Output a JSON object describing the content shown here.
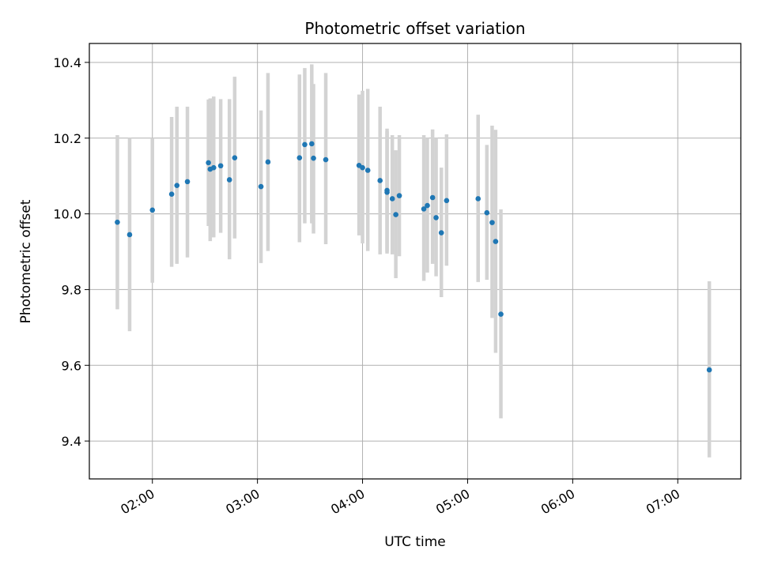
{
  "chart_data": {
    "type": "scatter",
    "title": "Photometric offset variation",
    "xlabel": "UTC time",
    "ylabel": "Photometric offset",
    "xlim": [
      "01:24",
      "07:36"
    ],
    "ylim": [
      9.3,
      10.45
    ],
    "x_ticks": [
      "02:00",
      "03:00",
      "04:00",
      "05:00",
      "06:00",
      "07:00"
    ],
    "y_ticks": [
      9.4,
      9.6,
      9.8,
      10.0,
      10.2,
      10.4
    ],
    "grid": true,
    "colors": {
      "point": "#1f77b4",
      "errorbar": "#d3d3d3",
      "grid": "#b0b0b0"
    },
    "points": [
      {
        "t": "01:40",
        "y": 9.978,
        "lo": 9.748,
        "hi": 10.208
      },
      {
        "t": "01:47",
        "y": 9.945,
        "lo": 9.69,
        "hi": 10.2
      },
      {
        "t": "02:00",
        "y": 10.01,
        "lo": 9.818,
        "hi": 10.2
      },
      {
        "t": "02:11",
        "y": 10.052,
        "lo": 9.86,
        "hi": 10.256
      },
      {
        "t": "02:14",
        "y": 10.075,
        "lo": 9.868,
        "hi": 10.283
      },
      {
        "t": "02:20",
        "y": 10.085,
        "lo": 9.885,
        "hi": 10.283
      },
      {
        "t": "02:32",
        "y": 10.135,
        "lo": 9.968,
        "hi": 10.302
      },
      {
        "t": "02:33",
        "y": 10.118,
        "lo": 9.928,
        "hi": 10.305
      },
      {
        "t": "02:35",
        "y": 10.122,
        "lo": 9.938,
        "hi": 10.31
      },
      {
        "t": "02:39",
        "y": 10.127,
        "lo": 9.95,
        "hi": 10.303
      },
      {
        "t": "02:44",
        "y": 10.09,
        "lo": 9.88,
        "hi": 10.303
      },
      {
        "t": "02:47",
        "y": 10.148,
        "lo": 9.935,
        "hi": 10.362
      },
      {
        "t": "03:02",
        "y": 10.072,
        "lo": 9.87,
        "hi": 10.273
      },
      {
        "t": "03:06",
        "y": 10.137,
        "lo": 9.902,
        "hi": 10.372
      },
      {
        "t": "03:24",
        "y": 10.148,
        "lo": 9.925,
        "hi": 10.368
      },
      {
        "t": "03:27",
        "y": 10.183,
        "lo": 9.975,
        "hi": 10.385
      },
      {
        "t": "03:31",
        "y": 10.185,
        "lo": 9.975,
        "hi": 10.395
      },
      {
        "t": "03:32",
        "y": 10.147,
        "lo": 9.948,
        "hi": 10.343
      },
      {
        "t": "03:39",
        "y": 10.143,
        "lo": 9.92,
        "hi": 10.372
      },
      {
        "t": "03:58",
        "y": 10.128,
        "lo": 9.943,
        "hi": 10.315
      },
      {
        "t": "04:00",
        "y": 10.122,
        "lo": 9.922,
        "hi": 10.325
      },
      {
        "t": "04:03",
        "y": 10.115,
        "lo": 9.902,
        "hi": 10.33
      },
      {
        "t": "04:10",
        "y": 10.088,
        "lo": 9.893,
        "hi": 10.283
      },
      {
        "t": "04:14",
        "y": 10.062,
        "lo": 9.9,
        "hi": 10.225
      },
      {
        "t": "04:14",
        "y": 10.057,
        "lo": 9.895,
        "hi": 10.218
      },
      {
        "t": "04:17",
        "y": 10.04,
        "lo": 9.893,
        "hi": 10.208
      },
      {
        "t": "04:19",
        "y": 9.998,
        "lo": 9.83,
        "hi": 10.168
      },
      {
        "t": "04:21",
        "y": 10.048,
        "lo": 9.888,
        "hi": 10.208
      },
      {
        "t": "04:35",
        "y": 10.013,
        "lo": 9.823,
        "hi": 10.208
      },
      {
        "t": "04:37",
        "y": 10.022,
        "lo": 9.845,
        "hi": 10.2
      },
      {
        "t": "04:40",
        "y": 10.043,
        "lo": 9.868,
        "hi": 10.223
      },
      {
        "t": "04:42",
        "y": 9.99,
        "lo": 9.835,
        "hi": 10.2
      },
      {
        "t": "04:45",
        "y": 9.95,
        "lo": 9.78,
        "hi": 10.122
      },
      {
        "t": "04:48",
        "y": 10.035,
        "lo": 9.863,
        "hi": 10.21
      },
      {
        "t": "05:06",
        "y": 10.04,
        "lo": 9.82,
        "hi": 10.262
      },
      {
        "t": "05:11",
        "y": 10.003,
        "lo": 9.826,
        "hi": 10.182
      },
      {
        "t": "05:14",
        "y": 9.977,
        "lo": 9.725,
        "hi": 10.233
      },
      {
        "t": "05:16",
        "y": 9.927,
        "lo": 9.633,
        "hi": 10.222
      },
      {
        "t": "05:19",
        "y": 9.735,
        "lo": 9.46,
        "hi": 10.012
      },
      {
        "t": "07:18",
        "y": 9.588,
        "lo": 9.357,
        "hi": 9.822
      }
    ]
  }
}
